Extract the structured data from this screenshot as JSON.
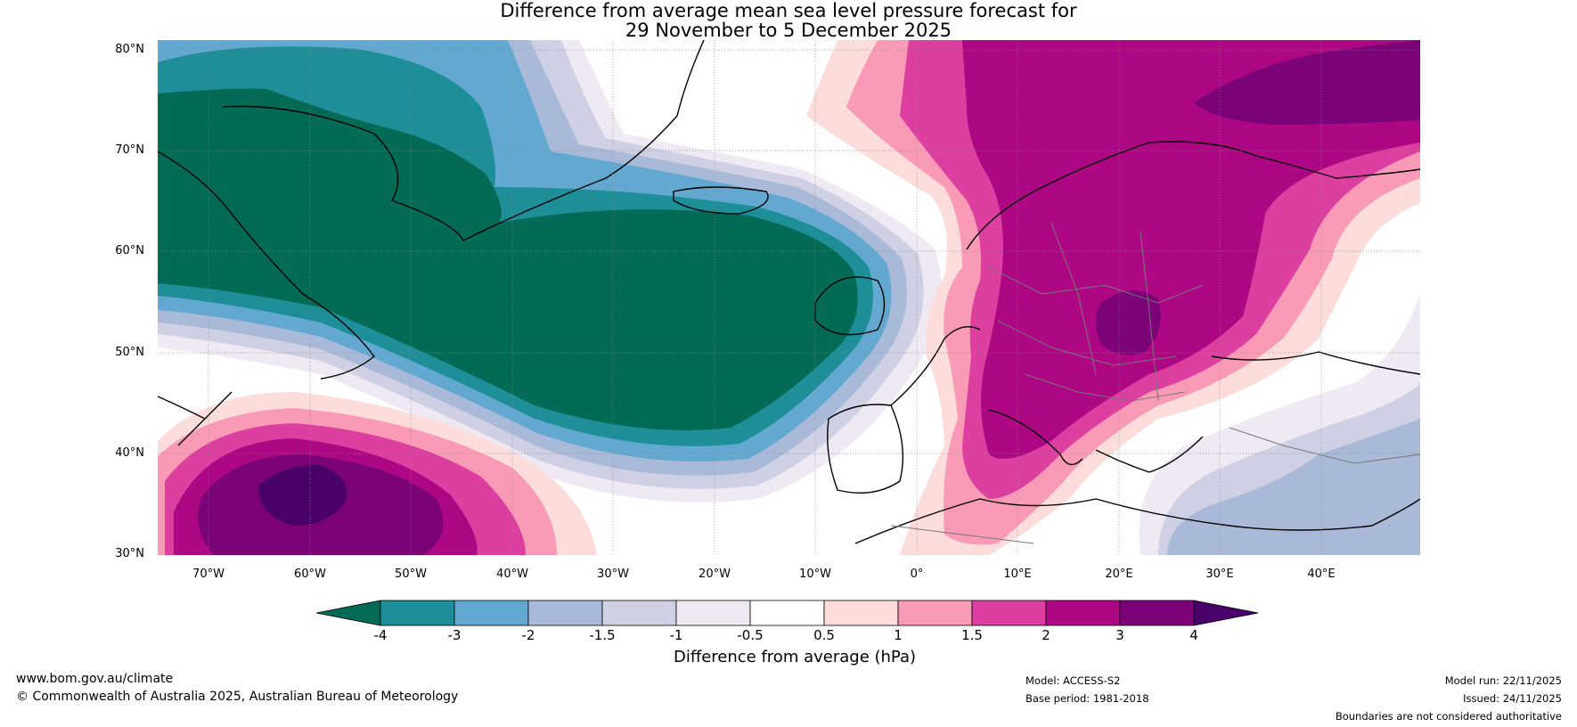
{
  "title": {
    "line1": "Difference from average mean sea level pressure forecast for",
    "line2": "29 November to 5 December 2025"
  },
  "map": {
    "lat_labels": [
      "80°N",
      "70°N",
      "60°N",
      "50°N",
      "40°N",
      "30°N"
    ],
    "lon_labels": [
      "70°W",
      "60°W",
      "50°W",
      "40°W",
      "30°W",
      "20°W",
      "10°W",
      "0°",
      "10°E",
      "20°E",
      "30°E",
      "40°E"
    ],
    "anomaly_features": [
      {
        "name": "negative-anomaly-north-atlantic",
        "level": "< -4"
      },
      {
        "name": "positive-anomaly-scandinavia-europe",
        "level": "> 3"
      },
      {
        "name": "positive-anomaly-arctic-barents",
        "level": "> 4"
      },
      {
        "name": "positive-anomaly-subtropical-atlantic",
        "level": "> 4"
      },
      {
        "name": "negative-anomaly-eastern-mediterranean",
        "level": "-1.5"
      }
    ]
  },
  "colorbar": {
    "ticks": [
      "-4",
      "-3",
      "-2",
      "-1.5",
      "-1",
      "-0.5",
      "0.5",
      "1",
      "1.5",
      "2",
      "3",
      "4"
    ],
    "colors": [
      "#036a55",
      "#1e8f98",
      "#62a8d0",
      "#a9bad8",
      "#d0d0e4",
      "#efe9f3",
      "#ffffff",
      "#fddcdc",
      "#f99bb6",
      "#dd3fa0",
      "#ad0783",
      "#7b0277",
      "#4a006a"
    ],
    "label": "Difference from average (hPa)"
  },
  "footer": {
    "website": "www.bom.gov.au/climate",
    "copyright": "© Commonwealth of Australia 2025, Australian Bureau of Meteorology",
    "model": "Model: ACCESS-S2",
    "base_period": "Base period: 1981-2018",
    "model_run": "Model run: 22/11/2025",
    "issued": "Issued: 24/11/2025",
    "disclaimer": "Boundaries are not considered authoritative"
  }
}
